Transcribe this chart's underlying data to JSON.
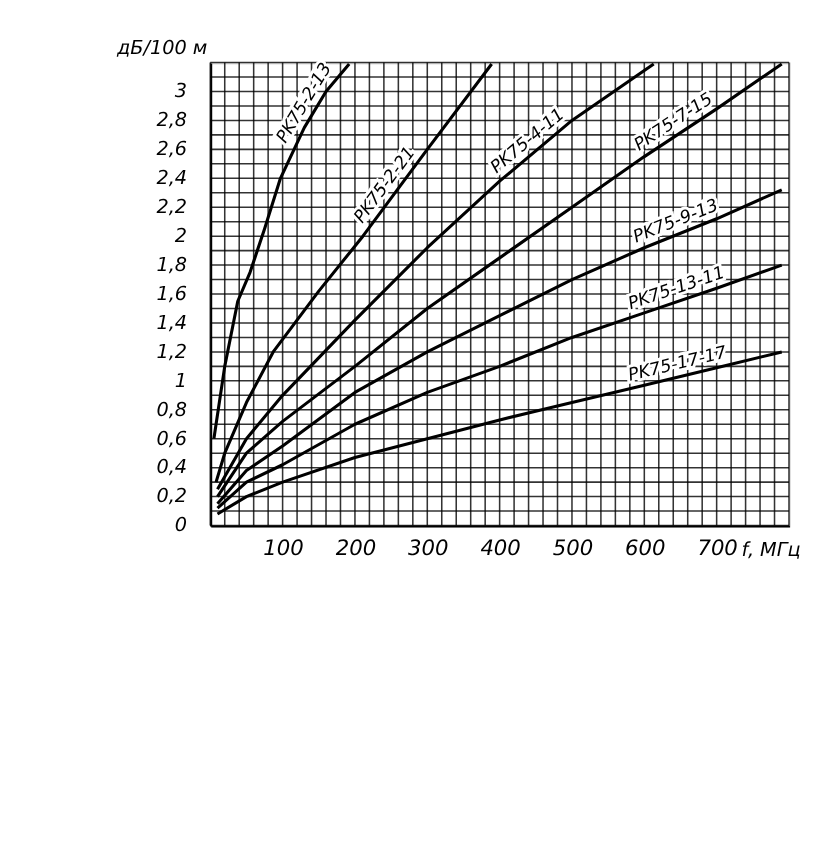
{
  "chart_data": {
    "type": "line",
    "ylabel": "дБ/100 м",
    "xlabel": "f, МГц",
    "xlim": [
      0,
      800
    ],
    "ylim": [
      0,
      3.2
    ],
    "xticks": [
      {
        "value": 0,
        "label": null
      },
      {
        "value": 20,
        "label": null
      },
      {
        "value": 40,
        "label": null
      },
      {
        "value": 60,
        "label": null
      },
      {
        "value": 80,
        "label": null
      },
      100,
      {
        "value": 120,
        "label": null
      },
      {
        "value": 140,
        "label": null
      },
      {
        "value": 160,
        "label": null
      },
      {
        "value": 180,
        "label": null
      },
      200,
      {
        "value": 220,
        "label": null
      },
      {
        "value": 240,
        "label": null
      },
      {
        "value": 260,
        "label": null
      },
      {
        "value": 280,
        "label": null
      },
      300,
      {
        "value": 320,
        "label": null
      },
      {
        "value": 340,
        "label": null
      },
      {
        "value": 360,
        "label": null
      },
      {
        "value": 380,
        "label": null
      },
      400,
      {
        "value": 420,
        "label": null
      },
      {
        "value": 440,
        "label": null
      },
      {
        "value": 460,
        "label": null
      },
      {
        "value": 480,
        "label": null
      },
      500,
      {
        "value": 520,
        "label": null
      },
      {
        "value": 540,
        "label": null
      },
      {
        "value": 560,
        "label": null
      },
      {
        "value": 580,
        "label": null
      },
      600,
      {
        "value": 620,
        "label": null
      },
      {
        "value": 640,
        "label": null
      },
      {
        "value": 660,
        "label": null
      },
      {
        "value": 680,
        "label": null
      },
      700,
      {
        "value": 720,
        "label": null
      },
      {
        "value": 740,
        "label": null
      },
      {
        "value": 760,
        "label": null
      },
      {
        "value": 780,
        "label": null
      },
      {
        "value": 800,
        "label": null
      }
    ],
    "yticks": [
      0,
      {
        "value": 0.1,
        "label": null
      },
      {
        "value": 0.2,
        "label": "0,2"
      },
      {
        "value": 0.3,
        "label": null
      },
      {
        "value": 0.4,
        "label": "0,4"
      },
      {
        "value": 0.5,
        "label": null
      },
      {
        "value": 0.6,
        "label": "0,6"
      },
      {
        "value": 0.7,
        "label": null
      },
      {
        "value": 0.8,
        "label": "0,8"
      },
      {
        "value": 0.9,
        "label": null
      },
      1,
      {
        "value": 1.1,
        "label": null
      },
      {
        "value": 1.2,
        "label": "1,2"
      },
      {
        "value": 1.3,
        "label": null
      },
      {
        "value": 1.4,
        "label": "1,4"
      },
      {
        "value": 1.5,
        "label": null
      },
      {
        "value": 1.6,
        "label": "1,6"
      },
      {
        "value": 1.7,
        "label": null
      },
      {
        "value": 1.8,
        "label": "1,8"
      },
      {
        "value": 1.9,
        "label": null
      },
      2,
      {
        "value": 2.1,
        "label": null
      },
      {
        "value": 2.2,
        "label": "2,2"
      },
      {
        "value": 2.3,
        "label": null
      },
      {
        "value": 2.4,
        "label": "2,4"
      },
      {
        "value": 2.5,
        "label": null
      },
      {
        "value": 2.6,
        "label": "2,6"
      },
      {
        "value": 2.7,
        "label": null
      },
      {
        "value": 2.8,
        "label": "2,8"
      },
      {
        "value": 2.9,
        "label": null
      },
      3,
      {
        "value": 3.1,
        "label": null
      },
      {
        "value": 3.2,
        "label": null
      }
    ],
    "grid": true,
    "legend": false,
    "marker": "none",
    "line_style": "solid",
    "series": [
      {
        "name": "PK75-2-13",
        "color": "#000000",
        "x": [
          5,
          20,
          38,
          55,
          75,
          97,
          130,
          160,
          192
        ],
        "values": [
          0.6,
          1.1,
          1.55,
          1.75,
          2.05,
          2.4,
          2.75,
          3.0,
          3.19
        ]
      },
      {
        "name": "PK75-2-21",
        "color": "#000000",
        "x": [
          8,
          20,
          50,
          87,
          150,
          211,
          300,
          389
        ],
        "values": [
          0.3,
          0.5,
          0.85,
          1.2,
          1.62,
          2.0,
          2.6,
          3.19
        ]
      },
      {
        "name": "PK75-4-11",
        "color": "#000000",
        "x": [
          10,
          50,
          100,
          200,
          300,
          400,
          500,
          613
        ],
        "values": [
          0.25,
          0.6,
          0.9,
          1.42,
          1.92,
          2.38,
          2.8,
          3.19
        ]
      },
      {
        "name": "PK75-7-15",
        "color": "#000000",
        "x": [
          10,
          50,
          100,
          200,
          300,
          400,
          500,
          600,
          700,
          790
        ],
        "values": [
          0.2,
          0.5,
          0.72,
          1.1,
          1.5,
          1.85,
          2.2,
          2.55,
          2.88,
          3.19
        ]
      },
      {
        "name": "PK75-9-13",
        "color": "#000000",
        "x": [
          10,
          50,
          100,
          200,
          300,
          400,
          500,
          600,
          700,
          790
        ],
        "values": [
          0.15,
          0.38,
          0.55,
          0.92,
          1.2,
          1.45,
          1.7,
          1.92,
          2.12,
          2.32
        ]
      },
      {
        "name": "PK75-13-11",
        "color": "#000000",
        "x": [
          10,
          50,
          100,
          200,
          300,
          400,
          500,
          600,
          700,
          790
        ],
        "values": [
          0.12,
          0.3,
          0.42,
          0.7,
          0.92,
          1.1,
          1.3,
          1.47,
          1.64,
          1.8
        ]
      },
      {
        "name": "PK75-17-17",
        "color": "#000000",
        "x": [
          10,
          50,
          100,
          200,
          300,
          400,
          500,
          600,
          700,
          790
        ],
        "values": [
          0.08,
          0.2,
          0.3,
          0.47,
          0.6,
          0.73,
          0.85,
          0.97,
          1.09,
          1.2
        ]
      }
    ]
  }
}
